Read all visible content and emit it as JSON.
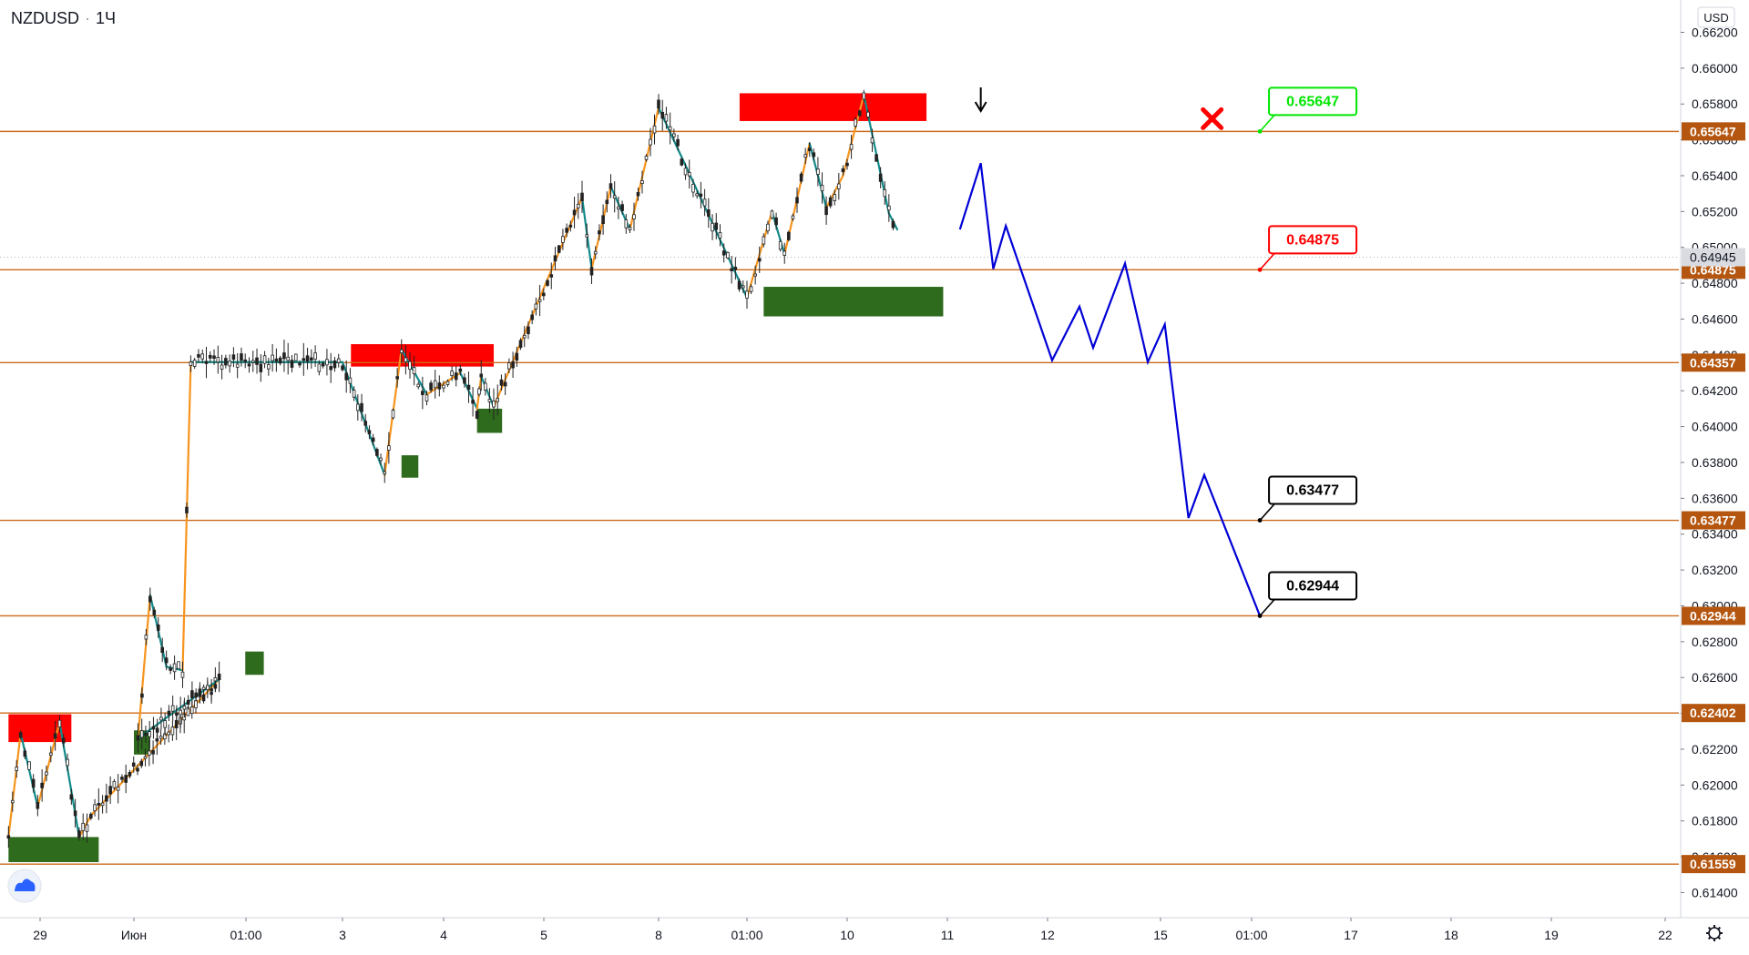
{
  "header": {
    "symbol": "NZDUSD",
    "separator": "·",
    "interval": "1Ч",
    "currency": "USD"
  },
  "colors": {
    "level_line": "#cc6a1a",
    "price_tag_bg": "#b4560f",
    "resistance_box": "#ff0000",
    "support_box": "#2e6b1d",
    "zigzag_up": "#f7941d",
    "zigzag_down": "#138a8a",
    "forecast": "#0000d6",
    "candle": "#222222",
    "target_callout": "#000000",
    "entry_callout": "#ff0000",
    "stop_callout": "#00e600",
    "stop_cross": "#ff0000"
  },
  "chart_data": {
    "type": "line",
    "title": "NZDUSD · 1Ч",
    "ylim": [
      0.6126,
      0.6636
    ],
    "y_axis_ticks": [
      "0.61400",
      "0.61600",
      "0.61800",
      "0.62000",
      "0.62200",
      "0.62400",
      "0.62600",
      "0.62800",
      "0.63000",
      "0.63200",
      "0.63400",
      "0.63600",
      "0.63800",
      "0.64000",
      "0.64200",
      "0.64400",
      "0.64600",
      "0.64800",
      "0.65000",
      "0.65200",
      "0.65400",
      "0.65600",
      "0.65800",
      "0.66000",
      "0.66200"
    ],
    "x_axis_ticks": [
      "29",
      "Июн",
      "01:00",
      "3",
      "4",
      "5",
      "8",
      "01:00",
      "10",
      "11",
      "12",
      "15",
      "01:00",
      "17",
      "18",
      "19",
      "22"
    ],
    "last_price": "0.64945",
    "levels": [
      {
        "label": "0.65647",
        "price": 0.65647
      },
      {
        "label": "0.64875",
        "price": 0.64875
      },
      {
        "label": "0.64357",
        "price": 0.64357
      },
      {
        "label": "0.63477",
        "price": 0.63477
      },
      {
        "label": "0.62944",
        "price": 0.62944
      },
      {
        "label": "0.62402",
        "price": 0.62402
      },
      {
        "label": "0.61559",
        "price": 0.61559
      }
    ],
    "zones": [
      {
        "kind": "resistance",
        "x": [
          "2020-05-28T11:00",
          "2020-05-29T08:00"
        ],
        "y": [
          0.6224,
          0.62395
        ]
      },
      {
        "kind": "support",
        "x": [
          "2020-05-28T11:00",
          "2020-05-29T15:00"
        ],
        "y": [
          0.6157,
          0.6171
        ]
      },
      {
        "kind": "support",
        "x": [
          "2020-06-01T00:00",
          "2020-06-01T04:00"
        ],
        "y": [
          0.6217,
          0.62305
        ]
      },
      {
        "kind": "support",
        "x": [
          "2020-06-02T03:00",
          "2020-06-02T07:00"
        ],
        "y": [
          0.62615,
          0.62745
        ]
      },
      {
        "kind": "resistance",
        "x": [
          "2020-06-03T02:00",
          "2020-06-04T12:00"
        ],
        "y": [
          0.64335,
          0.6446
        ]
      },
      {
        "kind": "support",
        "x": [
          "2020-06-03T14:00",
          "2020-06-03T18:00"
        ],
        "y": [
          0.63715,
          0.6384
        ]
      },
      {
        "kind": "support",
        "x": [
          "2020-06-04T08:00",
          "2020-06-04T14:00"
        ],
        "y": [
          0.63965,
          0.641
        ]
      },
      {
        "kind": "resistance",
        "x": [
          "2020-06-08T22:00",
          "2020-06-10T19:00"
        ],
        "y": [
          0.65705,
          0.6586
        ]
      },
      {
        "kind": "support",
        "x": [
          "2020-06-09T04:00",
          "2020-06-10T23:00"
        ],
        "y": [
          0.64615,
          0.6478
        ]
      }
    ],
    "zigzag": {
      "x": [
        "2020-05-28T11:00",
        "2020-05-28T16:00",
        "2020-05-28T23:00",
        "2020-05-29T05:00",
        "2020-05-29T10:00",
        "2020-05-29T13:00",
        "2020-05-31T23:00",
        "2020-06-01T01:00",
        "2020-06-01T04:00",
        "2020-06-01T08:00",
        "2020-06-01T12:00",
        "2020-06-01T14:00",
        "2020-06-03T00:00",
        "2020-06-03T10:00",
        "2020-06-03T14:00",
        "2020-06-03T20:00",
        "2020-06-04T04:00",
        "2020-06-04T08:00",
        "2020-06-04T09:00",
        "2020-06-04T12:00",
        "2020-06-05T08:00",
        "2020-06-05T10:00",
        "2020-06-05T14:00",
        "2020-06-05T18:00",
        "2020-06-08T00:00",
        "2020-06-09T00:00",
        "2020-06-09T06:00",
        "2020-06-09T09:00",
        "2020-06-09T15:00",
        "2020-06-09T19:00",
        "2020-06-09T23:00",
        "2020-06-10T04:00",
        "2020-06-10T10:00",
        "2020-06-10T12:00"
      ],
      "y": [
        0.6171,
        0.6229,
        0.6188,
        0.6235,
        0.6171,
        0.6183,
        0.6259,
        0.6226,
        0.6306,
        0.6266,
        0.6264,
        0.6436,
        0.6436,
        0.6373,
        0.6443,
        0.6418,
        0.643,
        0.641,
        0.6428,
        0.6411,
        0.6528,
        0.6488,
        0.6534,
        0.651,
        0.6578,
        0.6472,
        0.652,
        0.6496,
        0.6558,
        0.6522,
        0.654,
        0.6585,
        0.6519,
        0.651
      ]
    },
    "forecast_path": {
      "x": [
        "2020-06-11T03:00",
        "2020-06-11T08:00",
        "2020-06-11T11:00",
        "2020-06-11T14:00",
        "2020-06-12T01:00",
        "2020-06-12T07:00",
        "2020-06-12T10:00",
        "2020-06-12T17:00",
        "2020-06-12T22:00",
        "2020-06-15T02:00",
        "2020-06-15T08:00",
        "2020-06-15T12:00",
        "2020-06-16T02:00"
      ],
      "y": [
        0.651,
        0.6547,
        0.6488,
        0.6512,
        0.6437,
        0.6467,
        0.6444,
        0.6491,
        0.6436,
        0.6457,
        0.6349,
        0.6373,
        0.62944
      ]
    },
    "annotations": [
      {
        "label": "0.65647",
        "style": "stop",
        "x": "2020-06-16T02:00",
        "y": 0.65647
      },
      {
        "label": "0.64875",
        "style": "entry",
        "x": "2020-06-16T02:00",
        "y": 0.64875
      },
      {
        "label": "0.63477",
        "style": "target",
        "x": "2020-06-16T02:00",
        "y": 0.63477
      },
      {
        "label": "0.62944",
        "style": "target",
        "x": "2020-06-16T02:00",
        "y": 0.62944
      }
    ],
    "markers": [
      {
        "type": "arrow-down",
        "x": "2020-06-11T08:00"
      },
      {
        "type": "cross",
        "x": "2020-06-15T14:00",
        "y": 0.65647
      }
    ]
  }
}
